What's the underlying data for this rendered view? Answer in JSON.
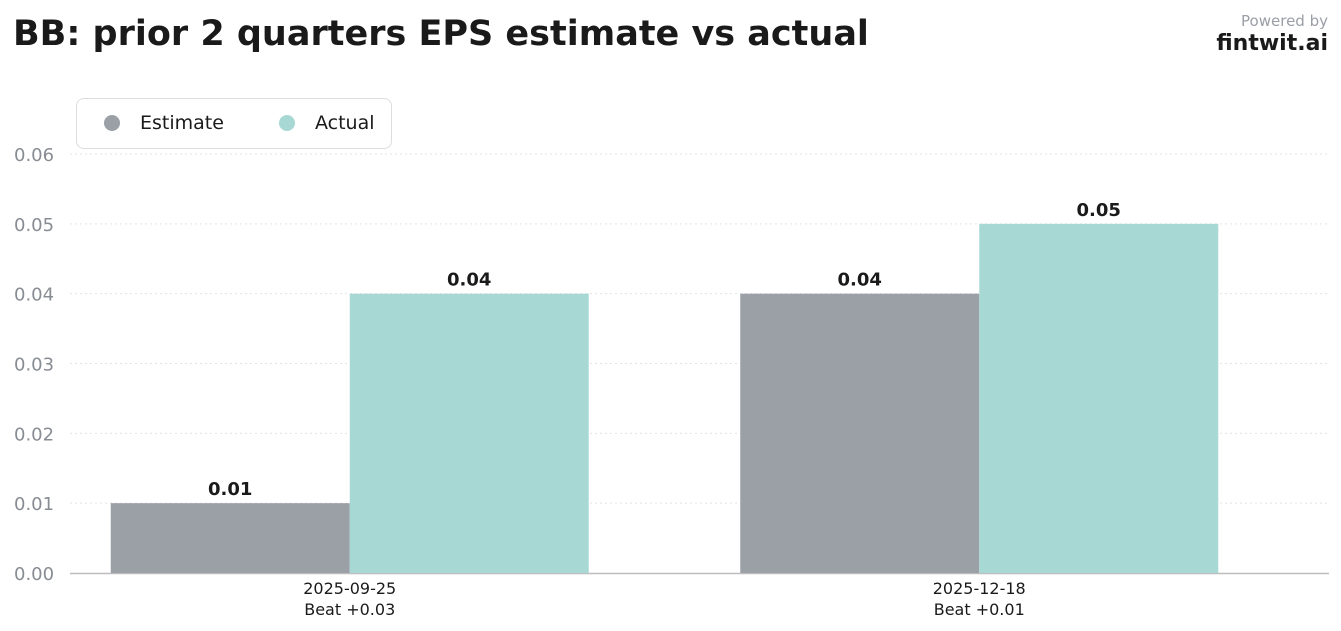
{
  "header": {
    "title": "BB: prior 2 quarters EPS estimate vs actual",
    "powered_by": "Powered by",
    "brand": "fintwit.ai"
  },
  "chart_data": {
    "type": "bar",
    "title": "BB: prior 2 quarters EPS estimate vs actual",
    "categories": [
      "2025-09-25",
      "2025-12-18"
    ],
    "category_sublabels": [
      "Beat +0.03",
      "Beat +0.01"
    ],
    "series": [
      {
        "name": "Estimate",
        "values": [
          0.01,
          0.04
        ],
        "color": "#9b9fa6"
      },
      {
        "name": "Actual",
        "values": [
          0.04,
          0.05
        ],
        "color": "#a8d8d4"
      }
    ],
    "value_labels": [
      [
        "0.01",
        "0.04"
      ],
      [
        "0.04",
        "0.05"
      ]
    ],
    "ylim": [
      0,
      0.06
    ],
    "yticks": [
      "0.00",
      "0.01",
      "0.02",
      "0.03",
      "0.04",
      "0.05",
      "0.06"
    ],
    "grid": true,
    "legend_position": "top-left"
  }
}
